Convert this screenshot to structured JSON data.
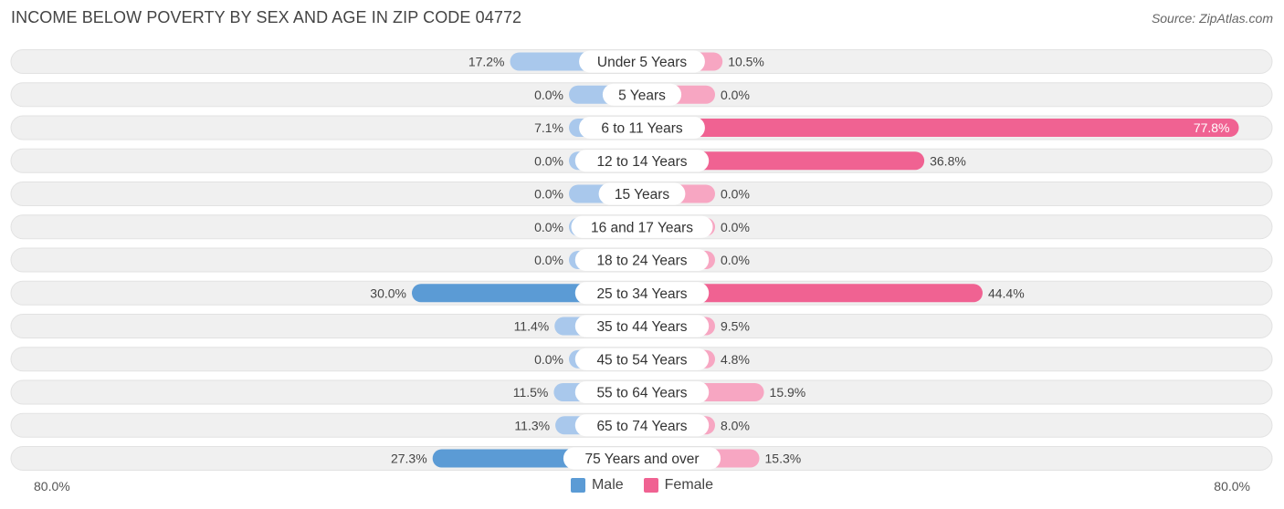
{
  "header": {
    "title": "INCOME BELOW POVERTY BY SEX AND AGE IN ZIP CODE 04772",
    "source": "Source: ZipAtlas.com"
  },
  "axis": {
    "left_label": "80.0%",
    "right_label": "80.0%"
  },
  "legend": {
    "male_label": "Male",
    "female_label": "Female"
  },
  "colors": {
    "male_strong": "#5b9bd5",
    "male_light": "#a9c8ec",
    "female_strong": "#f06292",
    "female_light": "#f7a6c2",
    "row_bg": "#f0f0f0"
  },
  "chart_data": {
    "type": "bar",
    "orientation": "horizontal-diverging",
    "title": "INCOME BELOW POVERTY BY SEX AND AGE IN ZIP CODE 04772",
    "xlim": [
      -80,
      80
    ],
    "categories": [
      "Under 5 Years",
      "5 Years",
      "6 to 11 Years",
      "12 to 14 Years",
      "15 Years",
      "16 and 17 Years",
      "18 to 24 Years",
      "25 to 34 Years",
      "35 to 44 Years",
      "45 to 54 Years",
      "55 to 64 Years",
      "65 to 74 Years",
      "75 Years and over"
    ],
    "series": [
      {
        "name": "Male",
        "values": [
          17.2,
          0.0,
          7.1,
          0.0,
          0.0,
          0.0,
          0.0,
          30.0,
          11.4,
          0.0,
          11.5,
          11.3,
          27.3
        ],
        "labels": [
          "17.2%",
          "0.0%",
          "7.1%",
          "0.0%",
          "0.0%",
          "0.0%",
          "0.0%",
          "30.0%",
          "11.4%",
          "0.0%",
          "11.5%",
          "11.3%",
          "27.3%"
        ]
      },
      {
        "name": "Female",
        "values": [
          10.5,
          0.0,
          77.8,
          36.8,
          0.0,
          0.0,
          0.0,
          44.4,
          9.5,
          4.8,
          15.9,
          8.0,
          15.3
        ],
        "labels": [
          "10.5%",
          "0.0%",
          "77.8%",
          "36.8%",
          "0.0%",
          "0.0%",
          "0.0%",
          "44.4%",
          "9.5%",
          "4.8%",
          "15.9%",
          "8.0%",
          "15.3%"
        ]
      }
    ],
    "legend_position": "bottom-center"
  }
}
